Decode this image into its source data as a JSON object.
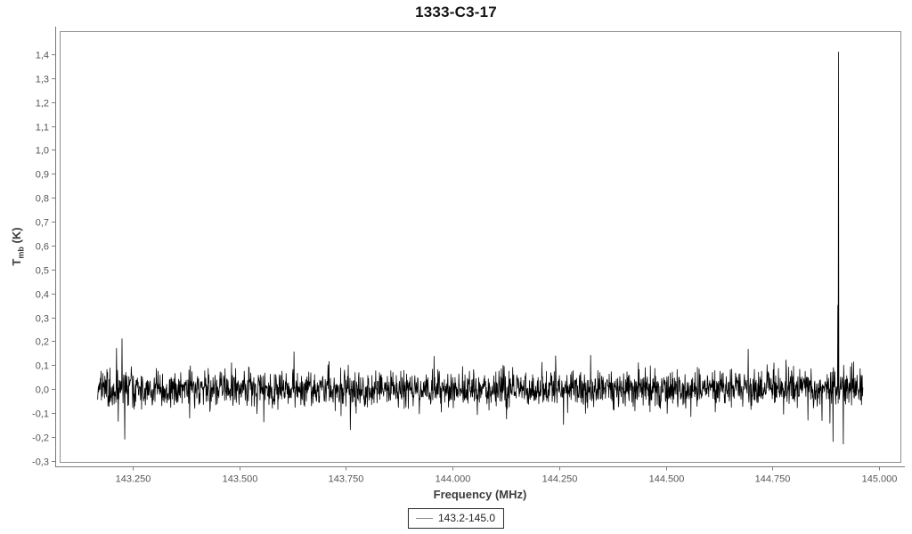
{
  "title": "1333-C3-17",
  "axes": {
    "x": {
      "label": "Frequency (MHz)",
      "tick_labels": [
        "143.250",
        "143.500",
        "143.750",
        "144.000",
        "144.250",
        "144.500",
        "144.750",
        "145.000"
      ],
      "tick_values": [
        143.25,
        143.5,
        143.75,
        144.0,
        144.25,
        144.5,
        144.75,
        145.0
      ]
    },
    "y": {
      "label_t": "T",
      "label_sub": "mb",
      "label_unit": " (K)",
      "tick_labels": [
        "1,4",
        "1,3",
        "1,2",
        "1,1",
        "1,0",
        "0,9",
        "0,8",
        "0,7",
        "0,6",
        "0,5",
        "0,4",
        "0,3",
        "0,2",
        "0,1",
        "0,0",
        "-0,1",
        "-0,2",
        "-0,3"
      ],
      "tick_values": [
        1.4,
        1.3,
        1.2,
        1.1,
        1.0,
        0.9,
        0.8,
        0.7,
        0.6,
        0.5,
        0.4,
        0.3,
        0.2,
        0.1,
        0.0,
        -0.1,
        -0.2,
        -0.3
      ]
    }
  },
  "legend": {
    "items": [
      {
        "label": "143.2-145.0",
        "line_color": "#8a8a8a"
      }
    ]
  },
  "colors": {
    "series_line": "#000000",
    "plot_frame": "#909090",
    "axis_line": "#7a7a7a",
    "tick_mark": "#808080",
    "tick_label": "#555555",
    "title_text": "#141414",
    "axis_label_text": "#3c3c3c"
  },
  "chart_data": {
    "type": "line",
    "title": "1333-C3-17",
    "xlabel": "Frequency (MHz)",
    "ylabel": "Tmb (K)",
    "xlim": [
      143.079,
      145.05
    ],
    "ylim": [
      -0.305,
      1.497
    ],
    "grid": false,
    "legend_position": "bottom",
    "series": [
      {
        "name": "143.2-145.0",
        "description": "baseline-subtracted noise spectrum with one strong narrow emission line",
        "x_start": 143.168,
        "x_end": 144.962,
        "n_points": 2230,
        "noise_mean": 0.0,
        "noise_sigma": 0.04,
        "spikes": [
          {
            "x": 143.212,
            "y": 0.17
          },
          {
            "x": 143.216,
            "y": -0.135
          },
          {
            "x": 143.225,
            "y": 0.21
          },
          {
            "x": 143.2315,
            "y": -0.21
          },
          {
            "x": 143.628,
            "y": 0.155
          },
          {
            "x": 143.76,
            "y": -0.17
          },
          {
            "x": 144.9035,
            "y": 0.35
          },
          {
            "x": 144.905,
            "y": 1.41
          },
          {
            "x": 144.892,
            "y": -0.22
          },
          {
            "x": 144.916,
            "y": -0.23
          }
        ],
        "peak_value": 1.41,
        "peak_frequency": 144.905
      }
    ]
  }
}
